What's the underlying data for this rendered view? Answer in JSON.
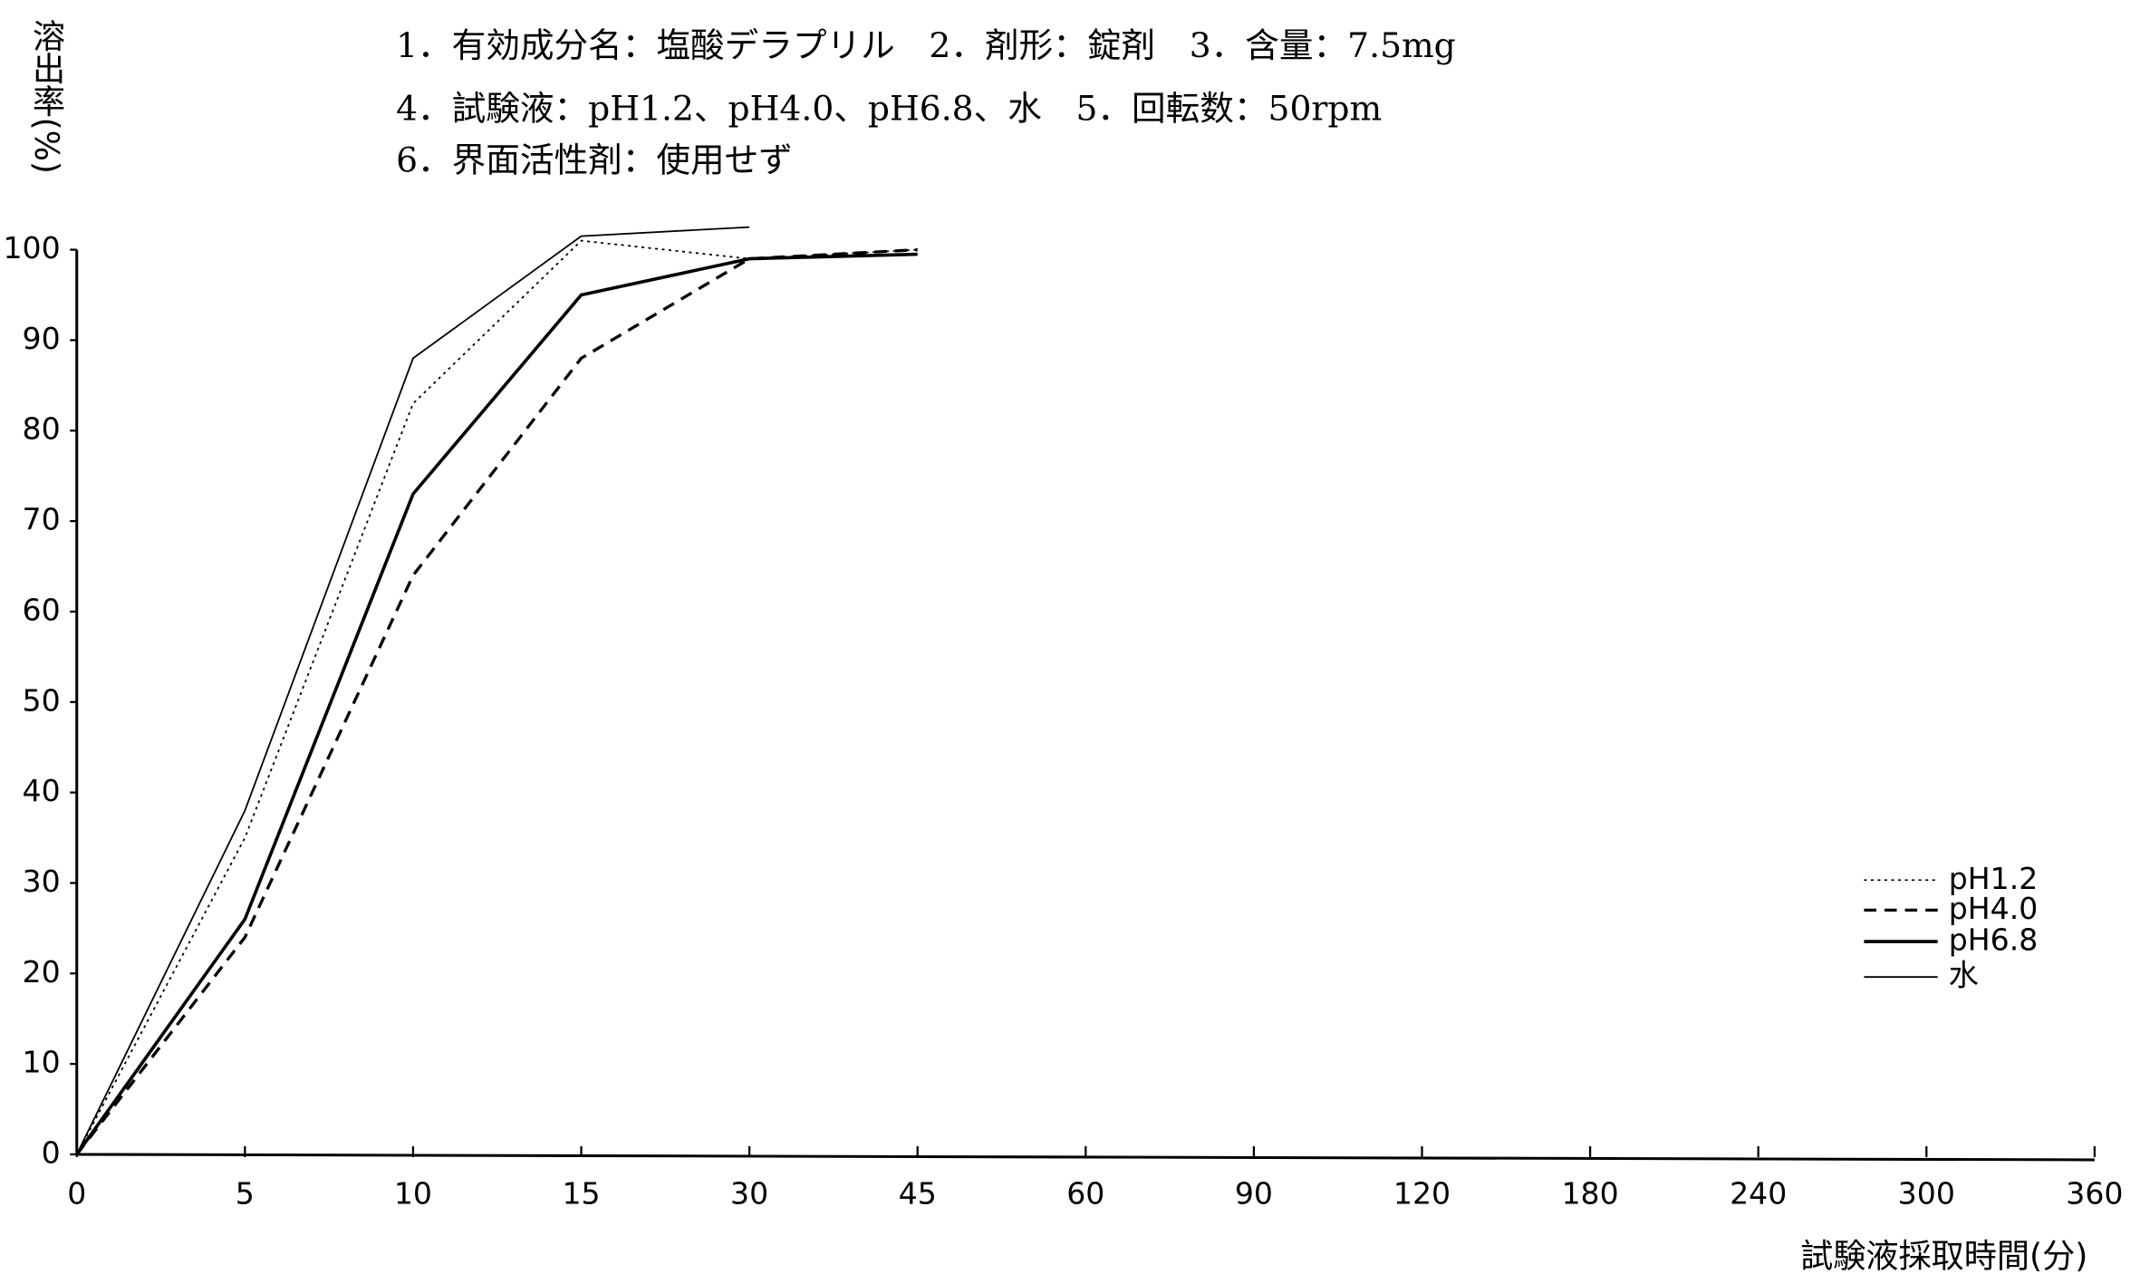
{
  "chart_data": {
    "type": "line",
    "title_lines": [
      "1．有効成分名：塩酸デラプリル　2．剤形：錠剤　3．含量：7.5mg",
      "4．試験液：pH1.2、pH4.0、pH6.8、水　5．回転数：50rpm",
      "6．界面活性剤：使用せず"
    ],
    "y_label": "溶出率(%)",
    "x_label": "試験液採取時間(分)",
    "categories": [
      "0",
      "5",
      "10",
      "15",
      "30",
      "45",
      "60",
      "90",
      "120",
      "180",
      "240",
      "300",
      "360"
    ],
    "series": [
      {
        "name": "pH1.2",
        "color": "#000000",
        "linestyle": "dotted",
        "linewidth": 1.2,
        "values": [
          0,
          35,
          83,
          101,
          99,
          100,
          null,
          null,
          null,
          null,
          null,
          null,
          null
        ]
      },
      {
        "name": "pH4.0",
        "color": "#000000",
        "linestyle": "dashed",
        "linewidth": 2.2,
        "values": [
          0,
          24,
          64,
          88,
          99,
          100,
          null,
          null,
          null,
          null,
          null,
          null,
          null
        ]
      },
      {
        "name": "pH6.8",
        "color": "#000000",
        "linestyle": "solid",
        "linewidth": 2.4,
        "values": [
          0,
          26,
          73,
          95,
          99,
          99.5,
          null,
          null,
          null,
          null,
          null,
          null,
          null
        ]
      },
      {
        "name": "水",
        "color": "#000000",
        "linestyle": "solid",
        "linewidth": 1.2,
        "values": [
          0,
          38,
          88,
          101.5,
          102.5,
          null,
          null,
          null,
          null,
          null,
          null,
          null,
          null
        ]
      }
    ],
    "ylim": [
      0,
      100
    ],
    "yticks": [
      0,
      10,
      20,
      30,
      40,
      50,
      60,
      70,
      80,
      90,
      100
    ],
    "grid": false,
    "legend": "right"
  }
}
